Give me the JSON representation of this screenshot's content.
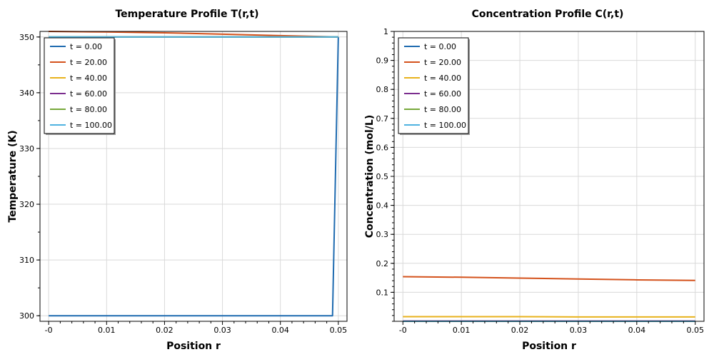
{
  "chart_data": [
    {
      "type": "line",
      "title": "Temperature Profile T(r,t)",
      "xlabel": "Position r",
      "ylabel": "Temperature (K)",
      "xlim": [
        -0.0015,
        0.0515
      ],
      "ylim": [
        299,
        351
      ],
      "xticks": [
        0,
        0.01,
        0.02,
        0.03,
        0.04,
        0.05
      ],
      "xtick_labels": [
        "-0",
        "0.01",
        "0.02",
        "0.03",
        "0.04",
        "0.05"
      ],
      "yticks": [
        300,
        310,
        320,
        330,
        340,
        350
      ],
      "ytick_labels": [
        "300",
        "310",
        "320",
        "330",
        "340",
        "350"
      ],
      "grid": true,
      "legend_position": "top-left",
      "series": [
        {
          "name": "t = 0.00",
          "color": "#1f6bb0",
          "x": [
            0,
            0.049,
            0.05
          ],
          "y": [
            300,
            300,
            350
          ]
        },
        {
          "name": "t = 20.00",
          "color": "#d4521c",
          "x": [
            0,
            0.01,
            0.02,
            0.03,
            0.04,
            0.05
          ],
          "y": [
            351.0,
            350.9,
            350.75,
            350.5,
            350.25,
            350
          ]
        },
        {
          "name": "t = 40.00",
          "color": "#e8b21c",
          "x": [
            0,
            0.05
          ],
          "y": [
            350,
            350
          ]
        },
        {
          "name": "t = 60.00",
          "color": "#7b2d8e",
          "x": [
            0,
            0.05
          ],
          "y": [
            350,
            350
          ]
        },
        {
          "name": "t = 80.00",
          "color": "#77a83a",
          "x": [
            0,
            0.05
          ],
          "y": [
            350,
            350
          ]
        },
        {
          "name": "t = 100.00",
          "color": "#4fb3e0",
          "x": [
            0,
            0.05
          ],
          "y": [
            350,
            350
          ]
        }
      ]
    },
    {
      "type": "line",
      "title": "Concentration Profile C(r,t)",
      "xlabel": "Position r",
      "ylabel": "Concentration (mol/L)",
      "xlim": [
        -0.0015,
        0.0515
      ],
      "ylim": [
        0,
        1
      ],
      "xticks": [
        0,
        0.01,
        0.02,
        0.03,
        0.04,
        0.05
      ],
      "xtick_labels": [
        "-0",
        "0.01",
        "0.02",
        "0.03",
        "0.04",
        "0.05"
      ],
      "yticks": [
        0.1,
        0.2,
        0.3,
        0.4,
        0.5,
        0.6,
        0.7,
        0.8,
        0.9,
        1
      ],
      "ytick_labels": [
        "0.1",
        "0.2",
        "0.3",
        "0.4",
        "0.5",
        "0.6",
        "0.7",
        "0.8",
        "0.9",
        "1"
      ],
      "grid": true,
      "legend_position": "top-left",
      "series": [
        {
          "name": "t = 0.00",
          "color": "#1f6bb0",
          "x": [
            0,
            0.05
          ],
          "y": [
            0.0,
            0.0
          ]
        },
        {
          "name": "t = 20.00",
          "color": "#d4521c",
          "x": [
            0,
            0.01,
            0.02,
            0.03,
            0.04,
            0.05
          ],
          "y": [
            0.154,
            0.152,
            0.149,
            0.146,
            0.143,
            0.141
          ]
        },
        {
          "name": "t = 40.00",
          "color": "#e8b21c",
          "x": [
            0,
            0.01,
            0.02,
            0.03,
            0.04,
            0.05
          ],
          "y": [
            0.016,
            0.016,
            0.016,
            0.015,
            0.015,
            0.015
          ]
        },
        {
          "name": "t = 60.00",
          "color": "#7b2d8e",
          "x": [
            0,
            0.05
          ],
          "y": [
            0.001,
            0.001
          ]
        },
        {
          "name": "t = 80.00",
          "color": "#77a83a",
          "x": [
            0,
            0.05
          ],
          "y": [
            0.0,
            0.0
          ]
        },
        {
          "name": "t = 100.00",
          "color": "#4fb3e0",
          "x": [
            0,
            0.05
          ],
          "y": [
            0.0,
            0.0
          ]
        }
      ]
    }
  ]
}
